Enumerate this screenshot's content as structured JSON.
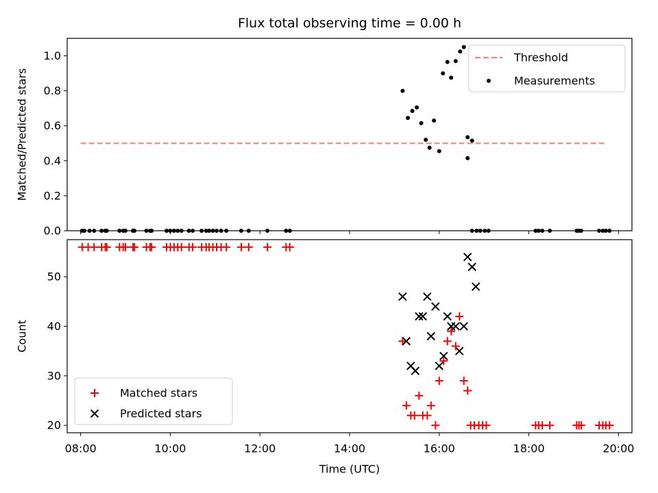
{
  "chart_data": [
    {
      "type": "scatter",
      "title": "Flux total observing time = 0.00 h",
      "ylabel": "Matched/Predicted stars",
      "xlabel": "",
      "xlim": [
        "07:42",
        "20:18"
      ],
      "ylim": [
        0,
        1.1
      ],
      "yticks": [
        "0.0",
        "0.2",
        "0.4",
        "0.6",
        "0.8",
        "1.0"
      ],
      "xticks": [
        "08:00",
        "10:00",
        "12:00",
        "14:00",
        "16:00",
        "18:00",
        "20:00"
      ],
      "show_xtick_labels": false,
      "legend": {
        "position": "top-right",
        "entries": [
          "Threshold",
          "Measurements"
        ]
      },
      "series": [
        {
          "name": "Threshold",
          "style": "dashed-line",
          "color": "#ff7f7f",
          "x": [
            "08:00",
            "19:42"
          ],
          "y": [
            0.5,
            0.5
          ]
        },
        {
          "name": "Measurements",
          "style": "dot",
          "color": "#000000",
          "x": [
            "08:02",
            "08:05",
            "08:12",
            "08:18",
            "08:28",
            "08:33",
            "08:35",
            "08:52",
            "08:57",
            "09:00",
            "09:10",
            "09:12",
            "09:28",
            "09:33",
            "09:35",
            "09:55",
            "10:00",
            "10:05",
            "10:10",
            "10:15",
            "10:25",
            "10:30",
            "10:42",
            "10:48",
            "10:52",
            "10:57",
            "11:02",
            "11:08",
            "11:15",
            "11:35",
            "11:45",
            "12:10",
            "12:35",
            "12:40",
            "15:11",
            "15:18",
            "15:24",
            "15:30",
            "15:36",
            "15:42",
            "15:47",
            "15:53",
            "16:00",
            "16:05",
            "16:11",
            "16:16",
            "16:22",
            "16:28",
            "16:33",
            "16:38",
            "16:44",
            "16:38",
            "16:44",
            "16:50",
            "16:55",
            "17:01",
            "17:06",
            "18:09",
            "18:13",
            "18:18",
            "18:28",
            "19:04",
            "19:07",
            "19:10",
            "19:34",
            "19:39",
            "19:43",
            "19:48"
          ],
          "y": [
            0,
            0,
            0,
            0,
            0,
            0,
            0,
            0,
            0,
            0,
            0,
            0,
            0,
            0,
            0,
            0,
            0,
            0,
            0,
            0,
            0,
            0,
            0,
            0,
            0,
            0,
            0,
            0,
            0,
            0,
            0,
            0,
            0,
            0,
            0.8,
            0.645,
            0.685,
            0.705,
            0.615,
            0.52,
            0.475,
            0.63,
            0.455,
            0.9,
            0.965,
            0.875,
            0.97,
            1.025,
            1.05,
            0.535,
            0.515,
            0.415,
            0,
            0,
            0,
            0,
            0,
            0,
            0,
            0,
            0,
            0,
            0,
            0,
            0,
            0,
            0,
            0
          ]
        }
      ]
    },
    {
      "type": "scatter",
      "title": "",
      "xlabel": "Time (UTC)",
      "ylabel": "Count",
      "xlim": [
        "07:42",
        "20:18"
      ],
      "ylim": [
        18.5,
        57.5
      ],
      "yticks": [
        "20",
        "30",
        "40",
        "50"
      ],
      "xticks": [
        "08:00",
        "10:00",
        "12:00",
        "14:00",
        "16:00",
        "18:00",
        "20:00"
      ],
      "legend": {
        "position": "bottom-left",
        "entries": [
          "Matched stars",
          "Predicted stars"
        ]
      },
      "series": [
        {
          "name": "Matched stars",
          "marker": "+",
          "color": "#ff0000",
          "x": [
            "08:02",
            "08:10",
            "08:18",
            "08:28",
            "08:33",
            "08:35",
            "08:52",
            "08:57",
            "09:00",
            "09:10",
            "09:12",
            "09:28",
            "09:33",
            "09:35",
            "09:55",
            "10:00",
            "10:05",
            "10:10",
            "10:15",
            "10:25",
            "10:30",
            "10:42",
            "10:48",
            "10:52",
            "10:57",
            "11:02",
            "11:08",
            "11:15",
            "11:35",
            "11:45",
            "12:10",
            "12:35",
            "12:40",
            "15:11",
            "15:16",
            "15:22",
            "15:27",
            "15:33",
            "15:38",
            "15:44",
            "15:49",
            "15:55",
            "16:00",
            "16:06",
            "16:11",
            "16:16",
            "16:22",
            "16:27",
            "16:33",
            "16:38",
            "16:42",
            "16:47",
            "16:53",
            "16:58",
            "17:03",
            "18:09",
            "18:13",
            "18:18",
            "18:28",
            "19:04",
            "19:07",
            "19:10",
            "19:34",
            "19:39",
            "19:43",
            "19:48"
          ],
          "y": [
            56,
            56,
            56,
            56,
            56,
            56,
            56,
            56,
            56,
            56,
            56,
            56,
            56,
            56,
            56,
            56,
            56,
            56,
            56,
            56,
            56,
            56,
            56,
            56,
            56,
            56,
            56,
            56,
            56,
            56,
            56,
            56,
            56,
            37,
            24,
            22,
            22,
            26,
            22,
            22,
            24,
            20,
            29,
            33,
            37,
            39,
            36,
            42,
            29,
            27,
            20,
            20,
            20,
            20,
            20,
            20,
            20,
            20,
            20,
            20,
            20,
            20,
            20,
            20,
            20,
            20
          ]
        },
        {
          "name": "Predicted stars",
          "marker": "x",
          "color": "#000000",
          "x": [
            "15:11",
            "15:16",
            "15:22",
            "15:28",
            "15:33",
            "15:38",
            "15:44",
            "15:49",
            "15:55",
            "16:00",
            "16:06",
            "16:11",
            "16:16",
            "16:22",
            "16:27",
            "16:33",
            "16:38",
            "16:44",
            "16:49"
          ],
          "y": [
            46,
            37,
            32,
            31,
            42,
            42,
            46,
            38,
            44,
            32,
            34,
            42,
            40,
            40,
            35,
            40,
            54,
            52,
            48
          ]
        }
      ]
    }
  ]
}
